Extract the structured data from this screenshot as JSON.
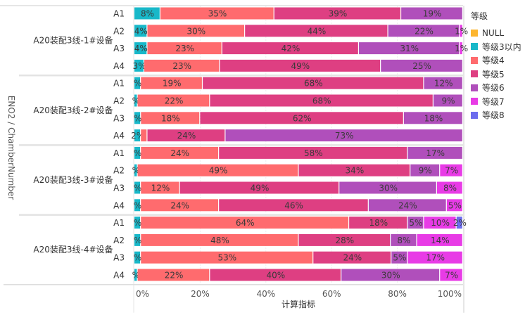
{
  "chart_data": {
    "type": "bar",
    "orientation": "horizontal",
    "stacked": true,
    "normalized": true,
    "xlabel": "计算指标",
    "ylabel": "ENO2 /  ChamberNumber",
    "xlim": [
      0,
      100
    ],
    "xticks": [
      "0%",
      "20%",
      "40%",
      "60%",
      "80%",
      "100%"
    ],
    "grid": true,
    "legend_title": "等级",
    "legend_position": "right",
    "series": [
      {
        "name": "NULL",
        "color": "#FDB62F"
      },
      {
        "name": "等级3以内",
        "color": "#18B8C9"
      },
      {
        "name": "等级4",
        "color": "#FF6B6E"
      },
      {
        "name": "等级5",
        "color": "#DE3F82"
      },
      {
        "name": "等级6",
        "color": "#B04FBB"
      },
      {
        "name": "等级7",
        "color": "#E83BE6"
      },
      {
        "name": "等级8",
        "color": "#6C6CEE"
      }
    ],
    "groups": [
      {
        "name": "A20装配3线-1#设备",
        "rows": [
          {
            "label": "A1",
            "values": [
              0,
              8,
              35,
              39,
              19,
              0,
              0
            ],
            "labels": [
              "",
              "8%",
              "35%",
              "39%",
              "19%",
              "",
              ""
            ]
          },
          {
            "label": "A2",
            "values": [
              0,
              4,
              30,
              44,
              22,
              1,
              0
            ],
            "labels": [
              "",
              "4%",
              "30%",
              "44%",
              "22%",
              "1%",
              ""
            ]
          },
          {
            "label": "A3",
            "values": [
              0,
              4,
              23,
              42,
              31,
              1,
              0
            ],
            "labels": [
              "",
              "4%",
              "23%",
              "42%",
              "31%",
              "1%",
              ""
            ]
          },
          {
            "label": "A4",
            "values": [
              0,
              3,
              23,
              49,
              25,
              0,
              0
            ],
            "labels": [
              "",
              "3%",
              "23%",
              "49%",
              "25%",
              "",
              ""
            ]
          }
        ]
      },
      {
        "name": "A20装配3线-2#设备",
        "rows": [
          {
            "label": "A1",
            "values": [
              0,
              2,
              19,
              68,
              12,
              0,
              0
            ],
            "labels": [
              "",
              "%",
              "19%",
              "68%",
              "12%",
              "",
              ""
            ]
          },
          {
            "label": "A2",
            "values": [
              0,
              1,
              22,
              68,
              9,
              0,
              0
            ],
            "labels": [
              "",
              "%",
              "22%",
              "68%",
              "9%",
              "",
              ""
            ]
          },
          {
            "label": "A3",
            "values": [
              0,
              2,
              18,
              62,
              18,
              0,
              0
            ],
            "labels": [
              "",
              "%",
              "18%",
              "62%",
              "18%",
              "",
              ""
            ]
          },
          {
            "label": "A4",
            "values": [
              0,
              2,
              2,
              24,
              73,
              0,
              0
            ],
            "labels": [
              "",
              "2%",
              "",
              "24%",
              "73%",
              "",
              ""
            ]
          }
        ]
      },
      {
        "name": "A20装配3线-3#设备",
        "rows": [
          {
            "label": "A1",
            "values": [
              0,
              2,
              24,
              58,
              17,
              0,
              0
            ],
            "labels": [
              "",
              "%",
              "24%",
              "58%",
              "17%",
              "",
              ""
            ]
          },
          {
            "label": "A2",
            "values": [
              0,
              1,
              49,
              34,
              9,
              7,
              0
            ],
            "labels": [
              "",
              "%",
              "49%",
              "34%",
              "9%",
              "7%",
              ""
            ]
          },
          {
            "label": "A3",
            "values": [
              0,
              2,
              12,
              49,
              30,
              8,
              0
            ],
            "labels": [
              "",
              "%",
              "12%",
              "49%",
              "30%",
              "8%",
              ""
            ]
          },
          {
            "label": "A4",
            "values": [
              0,
              2,
              24,
              46,
              24,
              5,
              0
            ],
            "labels": [
              "",
              "%",
              "24%",
              "46%",
              "24%",
              "5%",
              ""
            ]
          }
        ]
      },
      {
        "name": "A20装配3线-4#设备",
        "rows": [
          {
            "label": "A1",
            "values": [
              0,
              2,
              64,
              18,
              5,
              10,
              2
            ],
            "labels": [
              "",
              "%",
              "64%",
              "18%",
              "5%",
              "10%",
              "2%"
            ]
          },
          {
            "label": "A2",
            "values": [
              0,
              2,
              48,
              28,
              8,
              14,
              0
            ],
            "labels": [
              "",
              "%",
              "48%",
              "28%",
              "8%",
              "14%",
              ""
            ]
          },
          {
            "label": "A3",
            "values": [
              0,
              2,
              53,
              24,
              5,
              17,
              0
            ],
            "labels": [
              "",
              "%",
              "53%",
              "24%",
              "5%",
              "17%",
              ""
            ]
          },
          {
            "label": "A4",
            "values": [
              0,
              1,
              22,
              40,
              30,
              7,
              0
            ],
            "labels": [
              "",
              "%",
              "22%",
              "40%",
              "30%",
              "7%",
              ""
            ]
          }
        ]
      }
    ]
  }
}
